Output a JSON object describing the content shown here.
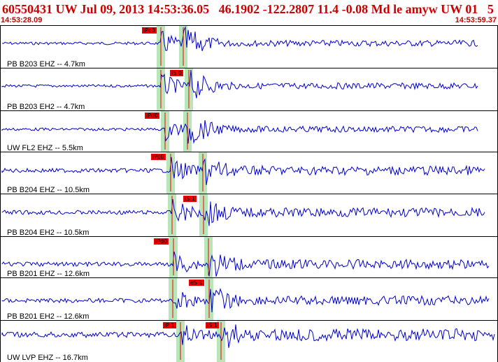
{
  "header": {
    "title": "60550431 UW Jul 09, 2013 14:53:36.05   46.1902 -122.2807 11.4 -0.08 Md le amyw UW 01   5",
    "time_start": "14:53:28.09",
    "time_end": "14:53:59.37"
  },
  "colors": {
    "trace": "#0000cc",
    "pick_label": "#ee0000",
    "pick_window": "#b8e6b8",
    "header_text": "#cc0000"
  },
  "panels": [
    {
      "label": "PB B203 EHZ -- 4.7km",
      "pick": "iPc0",
      "picks": [
        {
          "label": "iPc0",
          "time": 14.8
        }
      ]
    },
    {
      "label": "PB B203 EH2 -- 4.7km",
      "pick": "iS 0",
      "picks": [
        {
          "label": "iS 0",
          "time": 16.5
        }
      ]
    },
    {
      "label": "UW FL2 EHZ -- 5.5km",
      "pick": "iPd0",
      "picks": [
        {
          "label": "iPd0",
          "time": 15.0
        }
      ]
    },
    {
      "label": "PB B204 EHZ -- 10.5km",
      "pick": "iPc0",
      "picks": [
        {
          "label": "iPc0",
          "time": 15.5
        }
      ]
    },
    {
      "label": "PB B204 EH2 -- 10.5km",
      "pick": "iS 1",
      "picks": [
        {
          "label": "iS 1",
          "time": 17.4
        }
      ]
    },
    {
      "label": "PB B201 EHZ -- 12.6km",
      "pick": "iPd0",
      "picks": [
        {
          "label": "iPd0",
          "time": 15.7
        }
      ]
    },
    {
      "label": "PB B201 EH2 -- 12.6km",
      "pick": "eS 1",
      "picks": [
        {
          "label": "eS 1",
          "time": 17.8
        }
      ]
    },
    {
      "label": "UW LVP EHZ -- 16.7km",
      "pick": "iP 1",
      "picks": [
        {
          "label": "iP 1",
          "time": 16.2
        },
        {
          "label": "iS 1",
          "time": 19.3
        }
      ]
    }
  ]
}
